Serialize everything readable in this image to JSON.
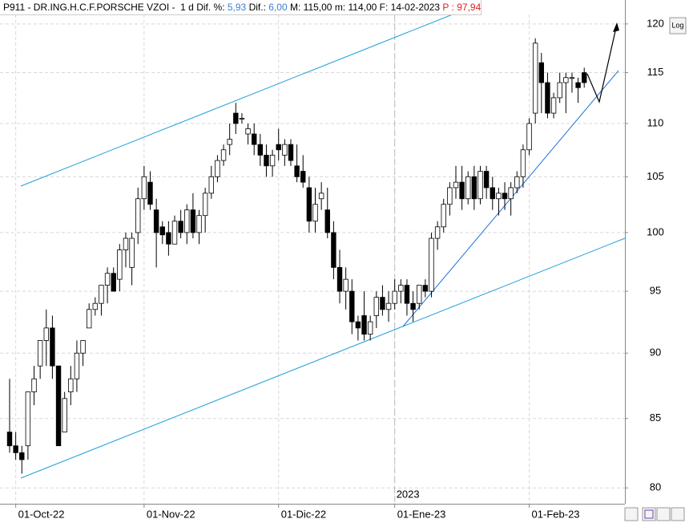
{
  "header": {
    "symbol": "P911 - DR.ING.H.C.F.PORSCHE VZOI -",
    "period": "1 d",
    "dif_pct_label": "Dif. %:",
    "dif_pct": "5,93",
    "dif_label": "Dif.:",
    "dif": "6,00",
    "max_label": "M:",
    "max": "115,00",
    "min_label": "m:",
    "min": "114,00",
    "date_label": "F:",
    "date": "14-02-2023",
    "p_label": "P :",
    "p": "97,94"
  },
  "log_button": "Log",
  "chart_data": {
    "type": "candlestick",
    "log_scale": true,
    "grid": true,
    "ylim": [
      78.9,
      121
    ],
    "yticks": [
      80,
      85,
      90,
      95,
      100,
      105,
      110,
      115,
      120
    ],
    "year_label": "2023",
    "categories": [
      null,
      "01-Oct-22",
      null,
      null,
      null,
      null,
      null,
      null,
      null,
      null,
      null,
      null,
      null,
      null,
      null,
      null,
      null,
      null,
      null,
      null,
      null,
      null,
      "01-Nov-22",
      null,
      null,
      null,
      null,
      null,
      null,
      null,
      null,
      null,
      null,
      null,
      null,
      null,
      null,
      null,
      null,
      null,
      null,
      null,
      null,
      null,
      "01-Dic-22",
      null,
      null,
      null,
      null,
      null,
      null,
      null,
      null,
      null,
      null,
      null,
      null,
      null,
      null,
      null,
      null,
      null,
      null,
      "01-Ene-23",
      null,
      null,
      null,
      null,
      null,
      null,
      null,
      null,
      null,
      null,
      null,
      null,
      null,
      null,
      null,
      null,
      null,
      null,
      null,
      null,
      null,
      "01-Feb-23",
      null,
      null,
      null,
      null,
      null,
      null,
      null,
      null,
      null
    ],
    "up_color": "#ffffff",
    "down_color": "#000000",
    "wick_color": "#000000",
    "ohlc": [
      [
        84,
        88,
        82.5,
        83
      ],
      [
        83,
        84,
        82,
        82.5
      ],
      [
        82.5,
        83,
        81,
        82
      ],
      [
        83,
        87,
        82,
        87
      ],
      [
        87,
        89,
        86,
        88
      ],
      [
        89,
        91,
        88,
        91
      ],
      [
        91,
        93.5,
        89,
        92
      ],
      [
        92,
        93,
        88,
        89
      ],
      [
        89,
        89,
        83,
        83
      ],
      [
        84,
        87,
        84,
        86.5
      ],
      [
        87,
        89,
        86,
        88
      ],
      [
        88,
        91,
        87,
        90
      ],
      [
        90,
        91,
        89,
        91
      ],
      [
        92,
        94,
        92,
        93.5
      ],
      [
        93.5,
        94.5,
        93,
        94
      ],
      [
        94,
        95.5,
        93,
        95.5
      ],
      [
        95.5,
        97,
        94,
        96.5
      ],
      [
        96.5,
        97,
        95,
        95
      ],
      [
        96,
        99,
        95,
        98.5
      ],
      [
        98.5,
        100,
        97,
        99.5
      ],
      [
        97,
        100,
        95.5,
        99.5
      ],
      [
        100,
        104,
        99,
        103
      ],
      [
        103,
        106,
        102,
        105
      ],
      [
        104.5,
        105.5,
        102,
        102.5
      ],
      [
        102,
        103,
        97,
        100
      ],
      [
        100.5,
        101,
        99,
        99.8
      ],
      [
        100,
        101,
        98,
        99
      ],
      [
        99,
        101.5,
        99,
        101
      ],
      [
        101,
        102,
        99.5,
        100
      ],
      [
        100,
        102.5,
        99,
        102
      ],
      [
        102,
        103.5,
        99.5,
        100
      ],
      [
        100,
        102,
        99,
        101.5
      ],
      [
        101.5,
        104,
        100,
        103.5
      ],
      [
        103.5,
        106,
        103,
        105
      ],
      [
        105,
        107,
        104.5,
        106.5
      ],
      [
        106.5,
        108,
        106,
        107.5
      ],
      [
        108,
        110,
        107,
        108.5
      ],
      [
        111,
        112,
        109,
        110
      ],
      [
        110.5,
        111,
        110,
        110.5
      ],
      [
        109,
        110,
        108,
        109.5
      ],
      [
        109,
        110,
        107,
        108
      ],
      [
        108,
        109,
        106,
        107
      ],
      [
        107,
        108,
        105,
        106
      ],
      [
        106,
        107.5,
        105,
        107
      ],
      [
        108,
        109.5,
        106.5,
        107.5
      ],
      [
        107,
        108.5,
        106,
        108
      ],
      [
        108,
        108.5,
        106,
        106.5
      ],
      [
        106,
        108,
        104.5,
        105
      ],
      [
        105.5,
        107,
        104,
        104.5
      ],
      [
        104,
        105,
        100,
        101
      ],
      [
        101,
        104,
        100,
        102.5
      ],
      [
        103,
        104.5,
        102,
        103.5
      ],
      [
        102,
        104,
        99.5,
        100
      ],
      [
        100,
        101,
        96,
        97
      ],
      [
        97,
        98.5,
        94,
        95
      ],
      [
        95,
        97,
        93.5,
        96
      ],
      [
        95,
        96,
        91.5,
        92.5
      ],
      [
        92.5,
        93,
        91,
        92
      ],
      [
        93,
        95,
        91,
        91.5
      ],
      [
        91.5,
        93,
        91,
        92.5
      ],
      [
        93,
        95,
        92,
        94.5
      ],
      [
        94.5,
        95.5,
        93,
        93.5
      ],
      [
        93.5,
        95,
        92.5,
        94
      ],
      [
        94,
        96,
        93.5,
        95
      ],
      [
        95,
        96,
        94,
        95.5
      ],
      [
        95.5,
        96,
        93,
        94
      ],
      [
        94,
        95,
        92.5,
        93.5
      ],
      [
        94,
        95.5,
        93.5,
        95.5
      ],
      [
        95.5,
        96,
        94.5,
        95
      ],
      [
        95,
        100,
        94.5,
        99.5
      ],
      [
        99.5,
        101,
        98.5,
        100.5
      ],
      [
        100.5,
        103,
        100,
        102.5
      ],
      [
        102.5,
        104.5,
        101.5,
        104
      ],
      [
        104,
        106,
        103,
        104.5
      ],
      [
        104.5,
        106,
        102,
        103
      ],
      [
        103,
        105.5,
        102.5,
        105
      ],
      [
        105,
        106,
        102,
        103
      ],
      [
        103,
        106,
        102.5,
        105.5
      ],
      [
        105.5,
        106,
        103,
        104
      ],
      [
        104,
        105,
        102,
        103
      ],
      [
        103,
        104,
        101.5,
        103.5
      ],
      [
        103.5,
        104.5,
        102,
        103
      ],
      [
        103,
        104.5,
        101.5,
        104
      ],
      [
        104,
        105.5,
        103.5,
        105
      ],
      [
        105,
        108,
        104,
        107.5
      ],
      [
        107.5,
        110.5,
        107,
        110
      ],
      [
        111,
        118.5,
        110,
        118
      ],
      [
        116,
        117,
        111,
        114
      ],
      [
        114,
        115,
        110.5,
        111
      ],
      [
        111,
        113,
        110.5,
        112.5
      ],
      [
        112.5,
        115,
        112,
        114
      ],
      [
        114,
        115,
        111,
        114.5
      ],
      [
        114.5,
        115,
        113,
        114.5
      ],
      [
        114,
        114.5,
        112,
        113.5
      ],
      [
        115,
        115.5,
        113.5,
        114
      ]
    ]
  }
}
